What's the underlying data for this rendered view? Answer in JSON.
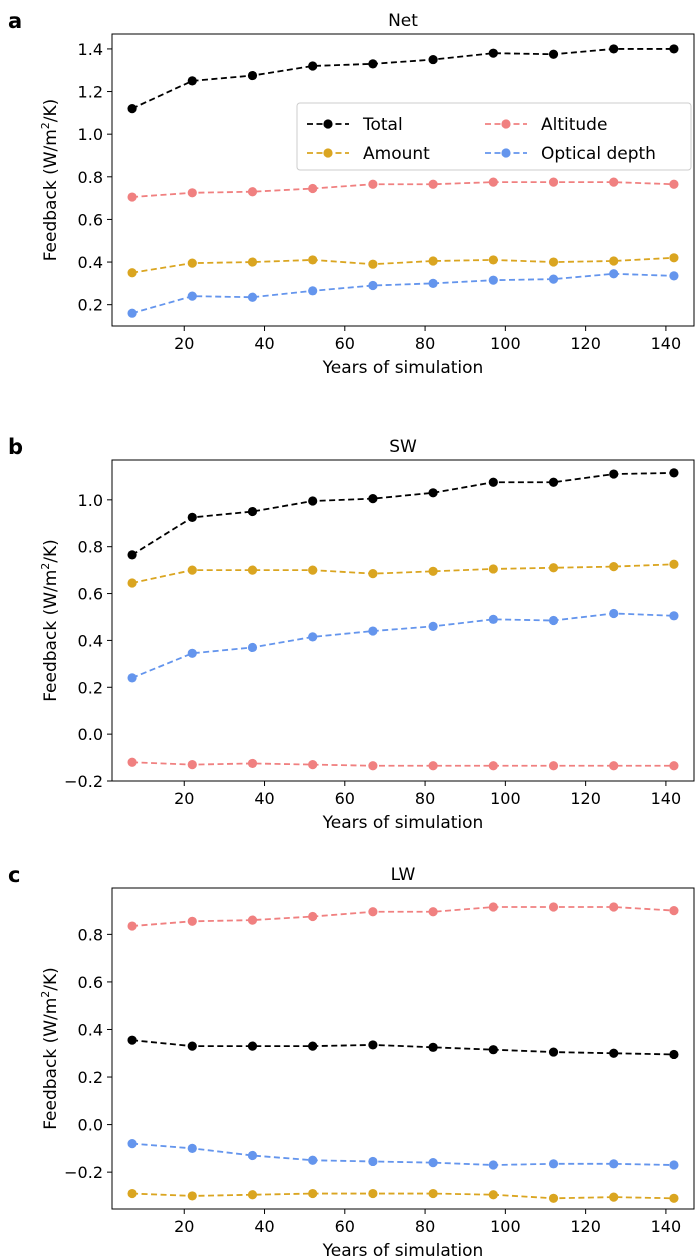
{
  "colors": {
    "total": "#000000",
    "amount": "#DAA520",
    "altitude": "#F08080",
    "optical_depth": "#6495ED"
  },
  "chart_data": [
    {
      "panel_label": "a",
      "type": "line",
      "title": "Net",
      "xlabel": "Years of simulation",
      "ylabel_prefix": "Feedback (W/m",
      "ylabel_sup": "2",
      "ylabel_suffix": "/K)",
      "x": [
        7,
        22,
        37,
        52,
        67,
        82,
        97,
        112,
        127,
        142
      ],
      "xlim": [
        2,
        147
      ],
      "ylim": [
        0.1,
        1.47
      ],
      "xticks": [
        20,
        40,
        60,
        80,
        100,
        120,
        140
      ],
      "yticks": [
        0.2,
        0.4,
        0.6,
        0.8,
        1.0,
        1.2,
        1.4
      ],
      "ytick_labels": [
        "0.2",
        "0.4",
        "0.6",
        "0.8",
        "1.0",
        "1.2",
        "1.4"
      ],
      "legend": {
        "placement": "center-right",
        "columns": 2
      },
      "series": [
        {
          "name": "Total",
          "color": "#000000",
          "values": [
            1.12,
            1.25,
            1.275,
            1.32,
            1.33,
            1.35,
            1.38,
            1.375,
            1.4,
            1.4
          ]
        },
        {
          "name": "Amount",
          "color": "#DAA520",
          "values": [
            0.35,
            0.395,
            0.4,
            0.41,
            0.39,
            0.405,
            0.41,
            0.4,
            0.405,
            0.42
          ]
        },
        {
          "name": "Altitude",
          "color": "#F08080",
          "values": [
            0.705,
            0.725,
            0.73,
            0.745,
            0.765,
            0.765,
            0.775,
            0.775,
            0.775,
            0.765
          ]
        },
        {
          "name": "Optical depth",
          "color": "#6495ED",
          "values": [
            0.16,
            0.24,
            0.235,
            0.265,
            0.29,
            0.3,
            0.315,
            0.32,
            0.345,
            0.335
          ]
        }
      ]
    },
    {
      "panel_label": "b",
      "type": "line",
      "title": "SW",
      "xlabel": "Years of simulation",
      "ylabel_prefix": "Feedback (W/m",
      "ylabel_sup": "2",
      "ylabel_suffix": "/K)",
      "x": [
        7,
        22,
        37,
        52,
        67,
        82,
        97,
        112,
        127,
        142
      ],
      "xlim": [
        2,
        147
      ],
      "ylim": [
        -0.2,
        1.17
      ],
      "xticks": [
        20,
        40,
        60,
        80,
        100,
        120,
        140
      ],
      "yticks": [
        -0.2,
        0.0,
        0.2,
        0.4,
        0.6,
        0.8,
        1.0
      ],
      "ytick_labels": [
        "−0.2",
        "0.0",
        "0.2",
        "0.4",
        "0.6",
        "0.8",
        "1.0"
      ],
      "series": [
        {
          "name": "Total",
          "color": "#000000",
          "values": [
            0.765,
            0.925,
            0.95,
            0.995,
            1.005,
            1.03,
            1.075,
            1.075,
            1.11,
            1.115
          ]
        },
        {
          "name": "Amount",
          "color": "#DAA520",
          "values": [
            0.645,
            0.7,
            0.7,
            0.7,
            0.685,
            0.695,
            0.705,
            0.71,
            0.715,
            0.725
          ]
        },
        {
          "name": "Altitude",
          "color": "#F08080",
          "values": [
            -0.12,
            -0.13,
            -0.125,
            -0.13,
            -0.135,
            -0.135,
            -0.135,
            -0.135,
            -0.135,
            -0.135
          ]
        },
        {
          "name": "Optical depth",
          "color": "#6495ED",
          "values": [
            0.24,
            0.345,
            0.37,
            0.415,
            0.44,
            0.46,
            0.49,
            0.485,
            0.515,
            0.505
          ]
        }
      ]
    },
    {
      "panel_label": "c",
      "type": "line",
      "title": "LW",
      "xlabel": "Years of simulation",
      "ylabel_prefix": "Feedback (W/m",
      "ylabel_sup": "2",
      "ylabel_suffix": "/K)",
      "x": [
        7,
        22,
        37,
        52,
        67,
        82,
        97,
        112,
        127,
        142
      ],
      "xlim": [
        2,
        147
      ],
      "ylim": [
        -0.355,
        0.995
      ],
      "xticks": [
        20,
        40,
        60,
        80,
        100,
        120,
        140
      ],
      "yticks": [
        -0.2,
        0.0,
        0.2,
        0.4,
        0.6,
        0.8
      ],
      "ytick_labels": [
        "−0.2",
        "0.0",
        "0.2",
        "0.4",
        "0.6",
        "0.8"
      ],
      "series": [
        {
          "name": "Total",
          "color": "#000000",
          "values": [
            0.355,
            0.33,
            0.33,
            0.33,
            0.335,
            0.325,
            0.315,
            0.305,
            0.3,
            0.295
          ]
        },
        {
          "name": "Amount",
          "color": "#DAA520",
          "values": [
            -0.29,
            -0.3,
            -0.295,
            -0.29,
            -0.29,
            -0.29,
            -0.295,
            -0.31,
            -0.305,
            -0.31
          ]
        },
        {
          "name": "Altitude",
          "color": "#F08080",
          "values": [
            0.835,
            0.855,
            0.86,
            0.875,
            0.895,
            0.895,
            0.915,
            0.915,
            0.915,
            0.9
          ]
        },
        {
          "name": "Optical depth",
          "color": "#6495ED",
          "values": [
            -0.08,
            -0.1,
            -0.13,
            -0.15,
            -0.155,
            -0.16,
            -0.17,
            -0.165,
            -0.165,
            -0.17
          ]
        }
      ]
    }
  ]
}
